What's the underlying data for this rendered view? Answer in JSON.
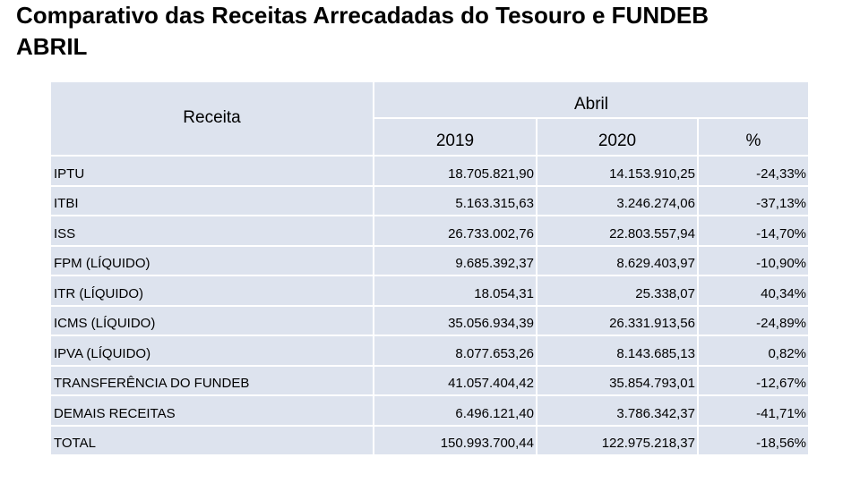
{
  "header": {
    "title": [
      "Comparativo das Receitas Arrecadadas do Tesouro e FUNDEB",
      "ABRIL"
    ]
  },
  "table": {
    "header": {
      "label": "Receita",
      "group": "Abril",
      "columns": [
        "2019",
        "2020",
        "%"
      ]
    },
    "rows": [
      [
        "IPTU",
        "18.705.821,90",
        "14.153.910,25",
        "-24,33%"
      ],
      [
        "ITBI",
        "5.163.315,63",
        "3.246.274,06",
        "-37,13%"
      ],
      [
        "ISS",
        "26.733.002,76",
        "22.803.557,94",
        "-14,70%"
      ],
      [
        "FPM (LÍQUIDO)",
        "9.685.392,37",
        "8.629.403,97",
        "-10,90%"
      ],
      [
        "ITR (LÍQUIDO)",
        "18.054,31",
        "25.338,07",
        "40,34%"
      ],
      [
        "ICMS (LÍQUIDO)",
        "35.056.934,39",
        "26.331.913,56",
        "-24,89%"
      ],
      [
        "IPVA (LÍQUIDO)",
        "8.077.653,26",
        "8.143.685,13",
        "0,82%"
      ],
      [
        "TRANSFERÊNCIA DO FUNDEB",
        "41.057.404,42",
        "35.854.793,01",
        "-12,67%"
      ],
      [
        "DEMAIS RECEITAS",
        "6.496.121,40",
        "3.786.342,37",
        "-41,71%"
      ],
      [
        "TOTAL",
        "150.993.700,44",
        "122.975.218,37",
        "-18,56%"
      ]
    ]
  }
}
